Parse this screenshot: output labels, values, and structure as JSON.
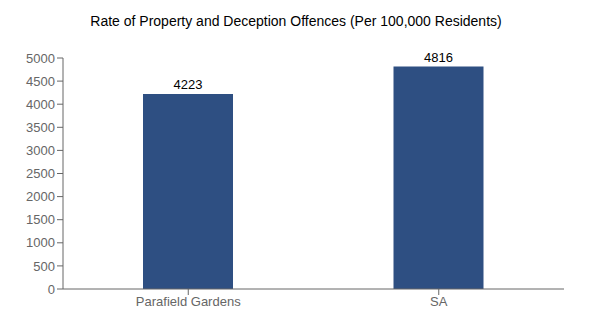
{
  "chart_data": {
    "type": "bar",
    "title": "Rate of Property and Deception Offences (Per 100,000 Residents)",
    "categories": [
      "Parafield Gardens",
      "SA"
    ],
    "values": [
      4223,
      4816
    ],
    "color": "#2e4f82",
    "ylim": [
      0,
      5000
    ],
    "yticks": [
      0,
      500,
      1000,
      1500,
      2000,
      2500,
      3000,
      3500,
      4000,
      4500,
      5000
    ],
    "grid": false,
    "data_labels": true
  }
}
